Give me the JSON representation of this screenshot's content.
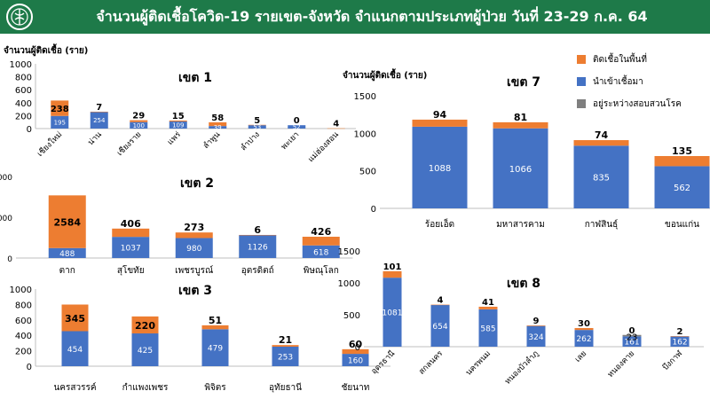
{
  "header": {
    "title": "จำนวนผู้ติดเชื้อโควิด-19 รายเขต-จังหวัด จำแนกตามประเภทผู้ป่วย วันที่ 23-29 ก.ค. 64"
  },
  "ylabel_left": "จำนวนผู้ติดเชื้อ (ราย)",
  "ylabel_right": "จำนวนผู้ติดเชื้อ (ราย)",
  "legend": [
    {
      "label": "ติดเชื้อในพื้นที่",
      "color": "#ed7d31"
    },
    {
      "label": "นำเข้าเชื้อมา",
      "color": "#4472c4"
    },
    {
      "label": "อยู่ระหว่างสอบสวนโรค",
      "color": "#7f7f7f"
    }
  ],
  "colors": {
    "local": "#ed7d31",
    "imported": "#4472c4",
    "investigating": "#7f7f7f",
    "header": "#1e7a49"
  },
  "chart_data": [
    {
      "type": "bar",
      "stacked": true,
      "title": "เขต 1",
      "categories": [
        "เชียงใหม่",
        "น่าน",
        "เชียงราย",
        "แพร่",
        "ลำพูน",
        "ลำปาง",
        "พะเยา",
        "แม่ฮ่องสอน"
      ],
      "series": [
        {
          "key": "imported",
          "values": [
            195,
            254,
            100,
            109,
            39,
            53,
            52,
            0
          ]
        },
        {
          "key": "local",
          "values": [
            238,
            7,
            29,
            15,
            58,
            5,
            0,
            4
          ]
        }
      ],
      "ylim": [
        0,
        1000
      ],
      "yticks": [
        0,
        200,
        400,
        600,
        800,
        1000
      ]
    },
    {
      "type": "bar",
      "stacked": true,
      "title": "เขต 2",
      "categories": [
        "ตาก",
        "สุโขทัย",
        "เพชรบูรณ์",
        "อุตรดิตถ์",
        "พิษณุโลก"
      ],
      "series": [
        {
          "key": "imported",
          "values": [
            488,
            1037,
            980,
            1126,
            618
          ]
        },
        {
          "key": "local",
          "values": [
            2584,
            406,
            273,
            6,
            426
          ]
        }
      ],
      "ylim": [
        0,
        4000
      ],
      "yticks": [
        0,
        2000,
        4000
      ]
    },
    {
      "type": "bar",
      "stacked": true,
      "title": "เขต 3",
      "categories": [
        "นครสวรรค์",
        "กำแพงเพชร",
        "พิจิตร",
        "อุทัยธานี",
        "ชัยนาท"
      ],
      "series": [
        {
          "key": "imported",
          "values": [
            454,
            425,
            479,
            253,
            160
          ]
        },
        {
          "key": "local",
          "values": [
            345,
            220,
            51,
            21,
            60
          ]
        }
      ],
      "ylim": [
        0,
        1000
      ],
      "yticks": [
        0,
        200,
        400,
        600,
        800,
        1000
      ]
    },
    {
      "type": "bar",
      "stacked": true,
      "title": "เขต 7",
      "categories": [
        "ร้อยเอ็ด",
        "มหาสารคาม",
        "กาฬสินธุ์",
        "ขอนแก่น"
      ],
      "series": [
        {
          "key": "imported",
          "values": [
            1088,
            1066,
            835,
            562
          ]
        },
        {
          "key": "local",
          "values": [
            94,
            81,
            74,
            135
          ]
        }
      ],
      "ylim": [
        0,
        1500
      ],
      "yticks": [
        0,
        500,
        1000,
        1500
      ]
    },
    {
      "type": "bar",
      "stacked": true,
      "title": "เขต 8",
      "categories": [
        "อุดรธานี",
        "สกลนคร",
        "นครพนม",
        "หนองบัวลำภู",
        "เลย",
        "หนองคาย",
        "บึงกาฬ"
      ],
      "series": [
        {
          "key": "imported",
          "values": [
            1081,
            654,
            585,
            324,
            262,
            161,
            162
          ]
        },
        {
          "key": "local",
          "values": [
            101,
            4,
            41,
            9,
            30,
            0,
            2
          ]
        },
        {
          "key": "investigating",
          "values": [
            0,
            0,
            0,
            0,
            0,
            23,
            0
          ]
        }
      ],
      "ylim": [
        0,
        1500
      ],
      "yticks": [
        0,
        500,
        1000,
        1500
      ]
    }
  ]
}
